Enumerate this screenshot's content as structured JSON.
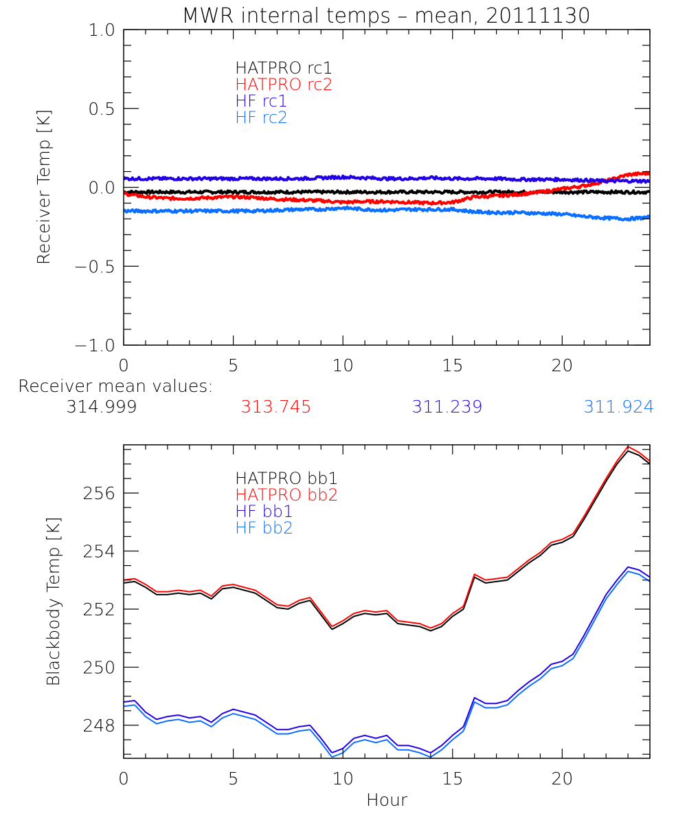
{
  "title": "MWR internal temps – mean, 20111130",
  "colors": {
    "black": "#000000",
    "red": "#ff0000",
    "blue": "#2200e6",
    "lightblue": "#0a6eff"
  },
  "receiver_means": {
    "label": "Receiver mean values:",
    "values": [
      {
        "name": "HATPRO rc1",
        "value": "314.999",
        "color": "#000000"
      },
      {
        "name": "HATPRO rc2",
        "value": "313.745",
        "color": "#ff0000"
      },
      {
        "name": "HF rc1",
        "value": "311.239",
        "color": "#2200e6"
      },
      {
        "name": "HF rc2",
        "value": "311.924",
        "color": "#0a6eff"
      }
    ]
  },
  "chart_data": [
    {
      "type": "line",
      "title": "MWR internal temps – mean, 20111130",
      "xlabel": "",
      "ylabel": "Receiver Temp [K]",
      "xlim": [
        0,
        24
      ],
      "ylim": [
        -1.0,
        1.0
      ],
      "xticks": [
        0,
        5,
        10,
        15,
        20
      ],
      "xtick_labels": [
        "0",
        "5",
        "10",
        "15",
        "20"
      ],
      "x_minor_step": 1,
      "yticks": [
        -1.0,
        -0.5,
        0.0,
        0.5,
        1.0
      ],
      "ytick_labels": [
        "−1.0",
        "−0.5",
        "0.0",
        "0.5",
        "1.0"
      ],
      "y_minor_step": 0.1,
      "grid": false,
      "legend_position": "top-center",
      "x": [
        0,
        1,
        2,
        3,
        4,
        5,
        6,
        7,
        8,
        9,
        10,
        11,
        12,
        13,
        14,
        15,
        16,
        17,
        18,
        19,
        20,
        21,
        22,
        23,
        24
      ],
      "series": [
        {
          "name": "HATPRO rc1",
          "color": "#000000",
          "values": [
            -0.03,
            -0.03,
            -0.03,
            -0.03,
            -0.03,
            -0.03,
            -0.03,
            -0.03,
            -0.03,
            -0.03,
            -0.03,
            -0.03,
            -0.03,
            -0.03,
            -0.03,
            -0.03,
            -0.03,
            -0.03,
            -0.03,
            -0.03,
            -0.03,
            -0.03,
            -0.03,
            -0.03,
            -0.03
          ]
        },
        {
          "name": "HATPRO rc2",
          "color": "#ff0000",
          "values": [
            -0.04,
            -0.06,
            -0.07,
            -0.07,
            -0.065,
            -0.06,
            -0.065,
            -0.075,
            -0.08,
            -0.085,
            -0.095,
            -0.09,
            -0.09,
            -0.095,
            -0.1,
            -0.095,
            -0.06,
            -0.055,
            -0.045,
            -0.03,
            -0.01,
            0.01,
            0.04,
            0.08,
            0.09
          ]
        },
        {
          "name": "HF rc1",
          "color": "#2200e6",
          "values": [
            0.055,
            0.055,
            0.055,
            0.055,
            0.055,
            0.055,
            0.055,
            0.055,
            0.055,
            0.06,
            0.065,
            0.06,
            0.055,
            0.055,
            0.06,
            0.055,
            0.055,
            0.055,
            0.05,
            0.05,
            0.05,
            0.045,
            0.04,
            0.04,
            0.04
          ]
        },
        {
          "name": "HF rc2",
          "color": "#0a6eff",
          "values": [
            -0.15,
            -0.15,
            -0.15,
            -0.15,
            -0.15,
            -0.15,
            -0.15,
            -0.145,
            -0.14,
            -0.14,
            -0.13,
            -0.14,
            -0.145,
            -0.14,
            -0.14,
            -0.14,
            -0.155,
            -0.16,
            -0.16,
            -0.165,
            -0.17,
            -0.185,
            -0.195,
            -0.2,
            -0.19
          ]
        }
      ]
    },
    {
      "type": "line",
      "title": "",
      "xlabel": "Hour",
      "ylabel": "Blackbody Temp [K]",
      "xlim": [
        0,
        24
      ],
      "ylim": [
        246.86,
        257.66
      ],
      "xticks": [
        0,
        5,
        10,
        15,
        20
      ],
      "xtick_labels": [
        "0",
        "5",
        "10",
        "15",
        "20"
      ],
      "x_minor_step": 1,
      "yticks": [
        248,
        250,
        252,
        254,
        256
      ],
      "ytick_labels": [
        "248",
        "250",
        "252",
        "254",
        "256"
      ],
      "y_minor_step": 0.5,
      "grid": false,
      "legend_position": "top-center",
      "x": [
        0,
        0.5,
        1,
        1.5,
        2,
        2.5,
        3,
        3.5,
        4,
        4.5,
        5,
        5.5,
        6,
        6.5,
        7,
        7.5,
        8,
        8.5,
        9,
        9.5,
        10,
        10.5,
        11,
        11.5,
        12,
        12.5,
        13,
        13.5,
        14,
        14.5,
        15,
        15.5,
        16,
        16.5,
        17,
        17.5,
        18,
        18.5,
        19,
        19.5,
        20,
        20.5,
        21,
        21.5,
        22,
        22.5,
        23,
        23.5,
        24
      ],
      "series": [
        {
          "name": "HATPRO bb1",
          "color": "#000000",
          "values": [
            252.9,
            252.95,
            252.75,
            252.5,
            252.5,
            252.55,
            252.5,
            252.55,
            252.35,
            252.7,
            252.75,
            252.65,
            252.55,
            252.3,
            252.05,
            252.0,
            252.2,
            252.3,
            251.8,
            251.3,
            251.5,
            251.75,
            251.85,
            251.8,
            251.85,
            251.5,
            251.45,
            251.4,
            251.25,
            251.4,
            251.75,
            252.0,
            253.1,
            252.9,
            252.95,
            253.0,
            253.3,
            253.6,
            253.85,
            254.2,
            254.3,
            254.5,
            255.1,
            255.75,
            256.4,
            257.0,
            257.45,
            257.3,
            257.0
          ]
        },
        {
          "name": "HATPRO bb2",
          "color": "#ff0000",
          "values": [
            253.0,
            253.05,
            252.85,
            252.6,
            252.6,
            252.65,
            252.6,
            252.65,
            252.45,
            252.8,
            252.85,
            252.75,
            252.65,
            252.4,
            252.15,
            252.1,
            252.3,
            252.4,
            251.9,
            251.4,
            251.6,
            251.85,
            251.95,
            251.9,
            251.95,
            251.6,
            251.55,
            251.5,
            251.35,
            251.5,
            251.85,
            252.1,
            253.2,
            253.0,
            253.05,
            253.1,
            253.4,
            253.7,
            253.95,
            254.3,
            254.4,
            254.6,
            255.2,
            255.85,
            256.5,
            257.1,
            257.6,
            257.4,
            257.1
          ]
        },
        {
          "name": "HF bb1",
          "color": "#2200e6",
          "values": [
            248.8,
            248.85,
            248.45,
            248.2,
            248.3,
            248.35,
            248.25,
            248.3,
            248.1,
            248.4,
            248.55,
            248.45,
            248.35,
            248.1,
            247.85,
            247.85,
            247.95,
            248.0,
            247.55,
            247.05,
            247.2,
            247.55,
            247.65,
            247.55,
            247.65,
            247.3,
            247.3,
            247.2,
            247.05,
            247.3,
            247.65,
            247.95,
            248.95,
            248.75,
            248.75,
            248.85,
            249.2,
            249.5,
            249.75,
            250.1,
            250.2,
            250.45,
            251.1,
            251.8,
            252.5,
            253.0,
            253.45,
            253.35,
            253.1
          ]
        },
        {
          "name": "HF bb2",
          "color": "#0a6eff",
          "values": [
            248.65,
            248.7,
            248.3,
            248.05,
            248.15,
            248.2,
            248.1,
            248.15,
            247.95,
            248.25,
            248.4,
            248.3,
            248.2,
            247.95,
            247.7,
            247.7,
            247.8,
            247.85,
            247.4,
            246.9,
            247.05,
            247.4,
            247.5,
            247.4,
            247.5,
            247.15,
            247.15,
            247.05,
            246.9,
            247.15,
            247.5,
            247.8,
            248.8,
            248.6,
            248.6,
            248.7,
            249.05,
            249.35,
            249.6,
            249.95,
            250.05,
            250.3,
            250.95,
            251.65,
            252.35,
            252.85,
            253.3,
            253.2,
            252.95
          ]
        }
      ]
    }
  ]
}
